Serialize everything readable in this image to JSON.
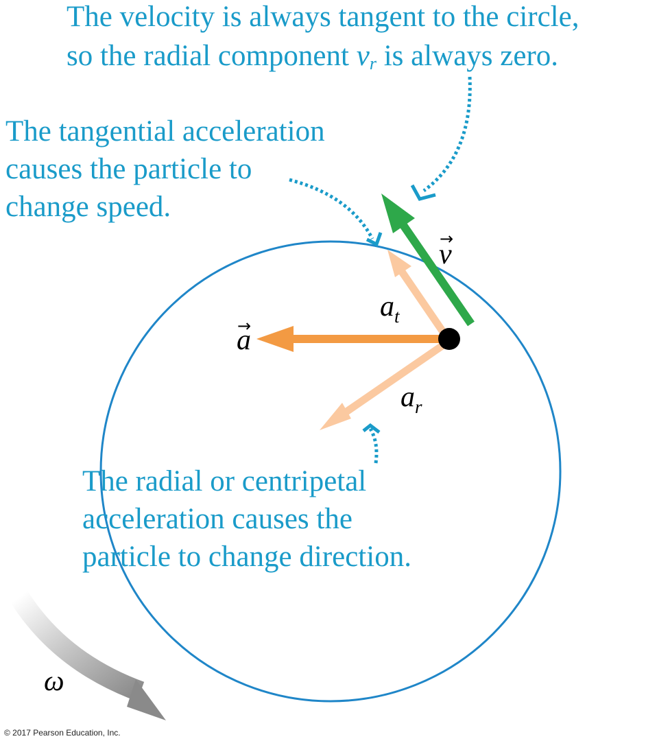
{
  "captions": {
    "velocity": {
      "line1": "The velocity is always tangent to the circle,",
      "line2_before": "so the radial component ",
      "line2_var": "v",
      "line2_sub": "r",
      "line2_after": " is always zero."
    },
    "tangential": {
      "line1": "The tangential acceleration",
      "line2": "causes the particle to",
      "line3": "change speed."
    },
    "radial": {
      "line1": "The radial or centripetal",
      "line2": "acceleration causes the",
      "line3": "particle to change direction."
    }
  },
  "labels": {
    "velocity": "v",
    "acceleration": "a",
    "tangential_base": "a",
    "tangential_sub": "t",
    "radial_base": "a",
    "radial_sub": "r",
    "omega": "ω",
    "vector_arrow": "→"
  },
  "copyright": "© 2017 Pearson Education, Inc.",
  "colors": {
    "caption_text": "#1a9bc9",
    "circle": "#1f86c8",
    "velocity_arrow": "#2ea84a",
    "acceleration_arrow": "#f39a43",
    "component_arrows": "#fbc9a0",
    "dotted_pointer": "#1a9bc9",
    "particle": "#000000",
    "omega_arrow": "#8a8a8a"
  },
  "icons": {
    "particle": "filled-circle",
    "rotation": "curved-gray-arrow"
  }
}
